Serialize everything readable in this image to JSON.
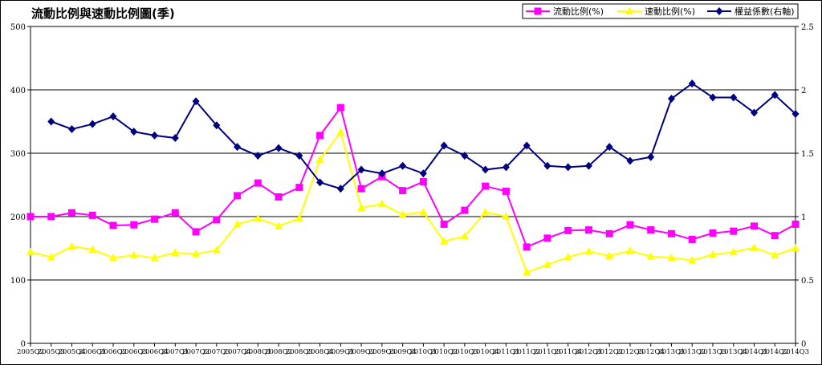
{
  "chart_data": {
    "type": "line",
    "title": "流動比例與速動比例圖(季)",
    "categories": [
      "2005Q2",
      "2005Q3",
      "2005Q4",
      "2006Q1",
      "2006Q2",
      "2006Q3",
      "2006Q4",
      "2007Q1",
      "2007Q2",
      "2007Q3",
      "2007Q4",
      "2008Q1",
      "2008Q2",
      "2008Q3",
      "2008Q4",
      "2009Q1",
      "2009Q2",
      "2009Q3",
      "2009Q4",
      "2010Q1",
      "2010Q2",
      "2010Q3",
      "2010Q4",
      "2011Q1",
      "2011Q2",
      "2011Q3",
      "2011Q4",
      "2012Q1",
      "2012Q2",
      "2012Q3",
      "2012Q4",
      "2013Q1",
      "2013Q2",
      "2013Q3",
      "2013Q4",
      "2014Q1",
      "2014Q2",
      "2014Q3"
    ],
    "y_left": {
      "ticks": [
        "0",
        "100",
        "200",
        "300",
        "400",
        "500"
      ],
      "min": 0,
      "max": 500
    },
    "y_right": {
      "ticks": [
        "0",
        "0.5",
        "1",
        "1.5",
        "2",
        "2.5"
      ],
      "min": 0,
      "max": 2.5
    },
    "grid": true,
    "legend_position": "top-right",
    "series": [
      {
        "name": "流動比例(%)",
        "axis": "left",
        "color": "#ff00ff",
        "marker": "square",
        "values": [
          200,
          200,
          206,
          202,
          186,
          187,
          196,
          206,
          176,
          195,
          233,
          253,
          231,
          246,
          328,
          372,
          244,
          263,
          241,
          255,
          188,
          210,
          248,
          240,
          152,
          166,
          178,
          179,
          173,
          187,
          179,
          173,
          164,
          174,
          177,
          185,
          170,
          188
        ]
      },
      {
        "name": "速動比例(%)",
        "axis": "left",
        "color": "#ffff00",
        "marker": "triangle",
        "values": [
          144,
          136,
          153,
          148,
          135,
          139,
          135,
          143,
          141,
          147,
          188,
          197,
          185,
          197,
          290,
          333,
          214,
          220,
          203,
          207,
          161,
          169,
          207,
          200,
          112,
          124,
          136,
          145,
          138,
          146,
          137,
          135,
          131,
          140,
          144,
          151,
          139,
          150
        ]
      },
      {
        "name": "權益係數(右軸)",
        "axis": "right",
        "color": "#000080",
        "marker": "diamond",
        "values": [
          null,
          1.75,
          1.69,
          1.73,
          1.79,
          1.67,
          1.64,
          1.62,
          1.91,
          1.72,
          1.55,
          1.48,
          1.54,
          1.48,
          1.27,
          1.22,
          1.37,
          1.34,
          1.4,
          1.34,
          1.56,
          1.48,
          1.37,
          1.39,
          1.56,
          1.4,
          1.39,
          1.4,
          1.55,
          1.44,
          1.47,
          1.93,
          2.05,
          1.94,
          1.94,
          1.82,
          1.96,
          1.81
        ]
      }
    ]
  }
}
